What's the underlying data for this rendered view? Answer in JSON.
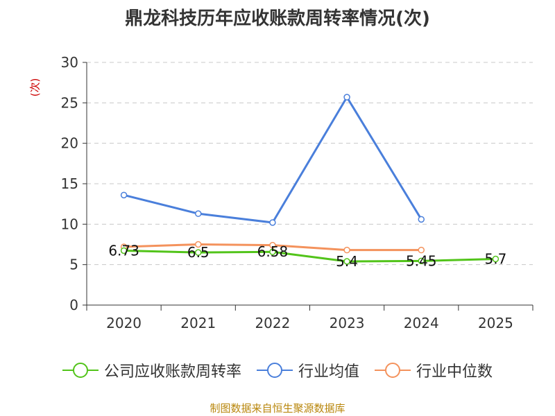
{
  "chart_data": {
    "type": "line",
    "title": "鼎龙科技历年应收账款周转率情况(次)",
    "ylabel": "(次)",
    "xlabel": "",
    "categories": [
      "2020",
      "2021",
      "2022",
      "2023",
      "2024",
      "2025"
    ],
    "ylim": [
      0,
      30
    ],
    "yticks": [
      0,
      5,
      10,
      15,
      20,
      25,
      30
    ],
    "grid": true,
    "legend_position": "bottom",
    "series": [
      {
        "name": "公司应收账款周转率",
        "color": "#52c41a",
        "values": [
          6.73,
          6.5,
          6.58,
          5.4,
          5.45,
          5.7
        ],
        "labels": [
          "6.73",
          "6.5",
          "6.58",
          "5.4",
          "5.45",
          "5.7"
        ]
      },
      {
        "name": "行业均值",
        "color": "#4a7fdb",
        "values": [
          13.6,
          11.3,
          10.2,
          25.7,
          10.6,
          null
        ]
      },
      {
        "name": "行业中位数",
        "color": "#f4925c",
        "values": [
          7.2,
          7.5,
          7.4,
          6.8,
          6.8,
          null
        ]
      }
    ]
  },
  "source": "制图数据来自恒生聚源数据库"
}
